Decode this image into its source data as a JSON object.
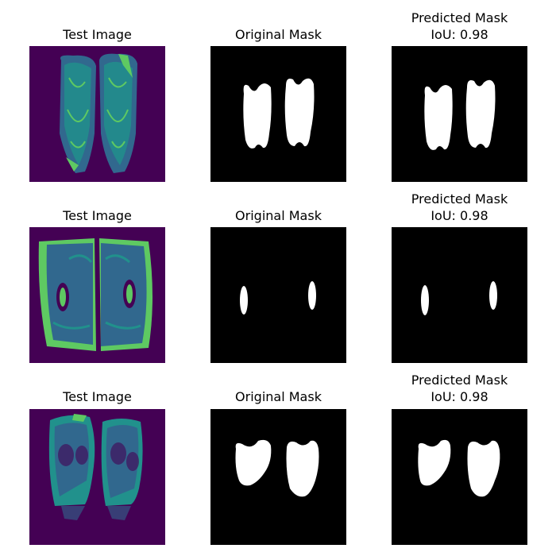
{
  "figure": {
    "rows": [
      {
        "test_title": "Test Image",
        "original_title": "Original Mask",
        "predicted_title": "Predicted Mask",
        "predicted_iou": "IoU: 0.98"
      },
      {
        "test_title": "Test Image",
        "original_title": "Original Mask",
        "predicted_title": "Predicted Mask",
        "predicted_iou": "IoU: 0.98"
      },
      {
        "test_title": "Test Image",
        "original_title": "Original Mask",
        "predicted_title": "Predicted Mask",
        "predicted_iou": "IoU: 0.98"
      }
    ]
  },
  "colors": {
    "viridis_background": "#440154",
    "viridis_mid": "#31688e",
    "viridis_teal": "#21918c",
    "viridis_green": "#5ec962",
    "viridis_yellow": "#fde725",
    "mask_background": "#000000",
    "mask_foreground": "#ffffff"
  }
}
